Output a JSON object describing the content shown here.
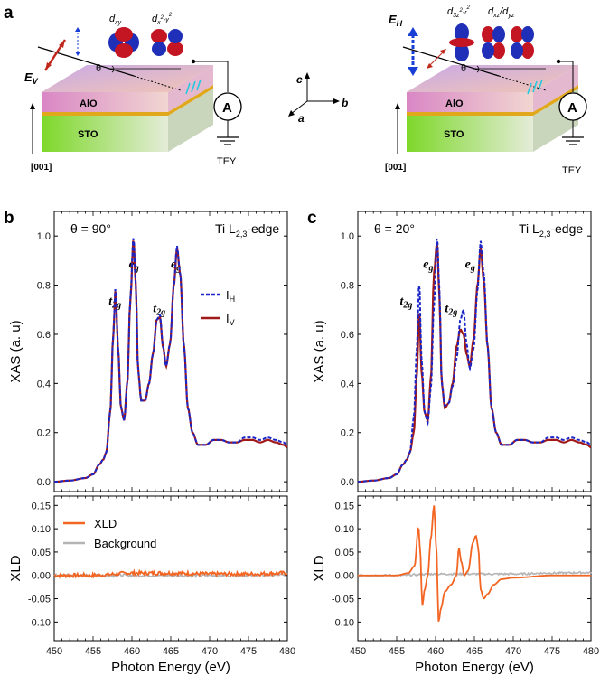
{
  "panels": {
    "a": "a",
    "b": "b",
    "c": "c"
  },
  "schematic": {
    "left": {
      "polarization": "E",
      "polarization_sub": "V",
      "angle": "θ",
      "orbital_1": "d",
      "orbital_1_sub": "xy",
      "orbital_2": "d",
      "orbital_2_sub": "x",
      "orbital_2_sup": "2",
      "orbital_2_tail": "-y",
      "orbital_2_tail_sup": "2",
      "layer_top": "AlO",
      "layer_bottom": "STO",
      "direction": "[001]",
      "meter": "A",
      "detector": "TEY"
    },
    "right": {
      "polarization": "E",
      "polarization_sub": "H",
      "angle": "θ",
      "orbital_1": "d",
      "orbital_1_sub": "3z",
      "orbital_1_sup": "2",
      "orbital_1_tail": "-r",
      "orbital_1_tail_sup": "2",
      "orbital_2": "d",
      "orbital_2_sub": "xz",
      "orbital_2_sep": "/d",
      "orbital_2_sub2": "yz",
      "layer_top": "AlO",
      "layer_bottom": "STO",
      "direction": "[001]",
      "meter": "A",
      "detector": "TEY"
    },
    "axes": {
      "c": "c",
      "b": "b",
      "a": "a"
    },
    "colors": {
      "ev": "#c0281c",
      "eh": "#1a3fd6",
      "spin": "#28c8e0",
      "orbital_red": "#c41522",
      "orbital_blue": "#1f2fb8"
    }
  },
  "colors": {
    "ih": "#1a25c8",
    "iv": "#a01818",
    "xld": "#f26522",
    "background": "#b4b4b4"
  },
  "chart_data": [
    {
      "type": "line",
      "panel": "b",
      "title": "θ = 90°",
      "edge_label": "Ti L",
      "edge_sub": "2,3",
      "edge_suffix": "-edge",
      "ylabel": "XAS (a. u)",
      "xlim": [
        450,
        480
      ],
      "ylim": [
        -0.04,
        1.1
      ],
      "yticks": [
        "0.0",
        "0.2",
        "0.4",
        "0.6",
        "0.8",
        "1.0"
      ],
      "peak_labels": [
        {
          "text": "t",
          "sub": "2g",
          "x": 457.0,
          "y": 0.72
        },
        {
          "text": "e",
          "sub": "g",
          "x": 459.6,
          "y": 0.87
        },
        {
          "text": "t",
          "sub": "2g",
          "x": 462.7,
          "y": 0.69
        },
        {
          "text": "e",
          "sub": "g",
          "x": 465.0,
          "y": 0.87
        }
      ],
      "legend": [
        {
          "label": "I",
          "sub": "H",
          "style": "dashed"
        },
        {
          "label": "I",
          "sub": "V",
          "style": "solid"
        }
      ],
      "series": [
        {
          "name": "I_H",
          "x": [
            450,
            452,
            454,
            455,
            455.8,
            456.3,
            456.7,
            457.2,
            457.6,
            457.9,
            458.2,
            458.6,
            459.0,
            459.4,
            459.8,
            460.2,
            460.5,
            460.8,
            461.2,
            461.7,
            462.2,
            462.7,
            463.2,
            463.6,
            464.0,
            464.4,
            464.9,
            465.4,
            465.8,
            466.2,
            466.7,
            467.2,
            467.8,
            468.5,
            469.5,
            470.5,
            471.5,
            472.5,
            473.5,
            474.5,
            475.5,
            476.5,
            477.5,
            478.5,
            479.5,
            480
          ],
          "y": [
            0.0,
            0.005,
            0.015,
            0.03,
            0.07,
            0.09,
            0.12,
            0.28,
            0.6,
            0.8,
            0.55,
            0.3,
            0.25,
            0.4,
            0.75,
            1.0,
            0.8,
            0.45,
            0.33,
            0.33,
            0.4,
            0.52,
            0.66,
            0.68,
            0.55,
            0.47,
            0.56,
            0.8,
            0.96,
            0.85,
            0.55,
            0.3,
            0.2,
            0.15,
            0.15,
            0.17,
            0.17,
            0.16,
            0.16,
            0.18,
            0.18,
            0.17,
            0.18,
            0.17,
            0.16,
            0.15
          ]
        },
        {
          "name": "I_V",
          "x": [
            450,
            452,
            454,
            455,
            455.8,
            456.3,
            456.7,
            457.2,
            457.6,
            457.9,
            458.2,
            458.6,
            459.0,
            459.4,
            459.8,
            460.2,
            460.5,
            460.8,
            461.2,
            461.7,
            462.2,
            462.7,
            463.2,
            463.6,
            464.0,
            464.4,
            464.9,
            465.4,
            465.8,
            466.2,
            466.7,
            467.2,
            467.8,
            468.5,
            469.5,
            470.5,
            471.5,
            472.5,
            473.5,
            474.5,
            475.5,
            476.5,
            477.5,
            478.5,
            479.5,
            480
          ],
          "y": [
            0.0,
            0.005,
            0.015,
            0.03,
            0.07,
            0.09,
            0.12,
            0.28,
            0.6,
            0.79,
            0.55,
            0.3,
            0.25,
            0.4,
            0.74,
            0.99,
            0.8,
            0.45,
            0.33,
            0.33,
            0.4,
            0.52,
            0.66,
            0.67,
            0.55,
            0.47,
            0.56,
            0.8,
            0.95,
            0.85,
            0.55,
            0.3,
            0.2,
            0.15,
            0.15,
            0.17,
            0.17,
            0.16,
            0.16,
            0.17,
            0.17,
            0.16,
            0.17,
            0.16,
            0.15,
            0.14
          ]
        }
      ]
    },
    {
      "type": "line",
      "panel": "b",
      "ylabel": "XLD",
      "xlabel": "Photon Energy (eV)",
      "xlim": [
        450,
        480
      ],
      "ylim": [
        -0.14,
        0.17
      ],
      "xticks": [
        "450",
        "455",
        "460",
        "465",
        "470",
        "475",
        "480"
      ],
      "yticks": [
        "-0.10",
        "-0.05",
        "0.00",
        "0.05",
        "0.10",
        "0.15"
      ],
      "legend": [
        {
          "label": "XLD",
          "style": "solid"
        },
        {
          "label": "Background",
          "style": "solid"
        }
      ],
      "series": [
        {
          "name": "XLD",
          "noise": 0.004,
          "x": [
            450,
            455,
            460,
            465,
            470,
            475,
            480
          ],
          "y": [
            0.0,
            0.0,
            0.005,
            0.005,
            0.003,
            0.003,
            0.005
          ]
        },
        {
          "name": "Background",
          "noise": 0.003,
          "x": [
            450,
            455,
            460,
            465,
            470,
            475,
            480
          ],
          "y": [
            0.0,
            0.0,
            0.0,
            0.0,
            0.0,
            0.0,
            0.002
          ]
        }
      ]
    },
    {
      "type": "line",
      "panel": "c",
      "title": "θ = 20°",
      "edge_label": "Ti L",
      "edge_sub": "2,3",
      "edge_suffix": "-edge",
      "ylabel": "XAS (a. u)",
      "xlim": [
        450,
        480
      ],
      "ylim": [
        -0.04,
        1.1
      ],
      "yticks": [
        "0.0",
        "0.2",
        "0.4",
        "0.6",
        "0.8",
        "1.0"
      ],
      "peak_labels": [
        {
          "text": "t",
          "sub": "2g",
          "x": 455.4,
          "y": 0.72
        },
        {
          "text": "e",
          "sub": "g",
          "x": 458.4,
          "y": 0.87
        },
        {
          "text": "t",
          "sub": "2g",
          "x": 461.2,
          "y": 0.69
        },
        {
          "text": "e",
          "sub": "g",
          "x": 463.8,
          "y": 0.87
        }
      ],
      "series": [
        {
          "name": "I_H",
          "x": [
            450,
            452,
            454,
            455,
            455.8,
            456.3,
            456.7,
            457.2,
            457.6,
            457.9,
            458.2,
            458.6,
            459.0,
            459.4,
            459.8,
            460.2,
            460.5,
            460.8,
            461.2,
            461.7,
            462.2,
            462.7,
            463.2,
            463.6,
            464.0,
            464.4,
            464.9,
            465.4,
            465.8,
            466.2,
            466.7,
            467.2,
            467.8,
            468.5,
            469.5,
            470.5,
            471.5,
            472.5,
            473.5,
            474.5,
            475.5,
            476.5,
            477.5,
            478.5,
            479.5,
            480
          ],
          "y": [
            0.0,
            0.005,
            0.015,
            0.03,
            0.07,
            0.09,
            0.12,
            0.26,
            0.55,
            0.82,
            0.5,
            0.28,
            0.24,
            0.38,
            0.72,
            1.0,
            0.78,
            0.4,
            0.31,
            0.32,
            0.39,
            0.5,
            0.66,
            0.7,
            0.56,
            0.46,
            0.54,
            0.78,
            0.98,
            0.85,
            0.55,
            0.3,
            0.2,
            0.15,
            0.15,
            0.17,
            0.17,
            0.16,
            0.16,
            0.18,
            0.18,
            0.17,
            0.18,
            0.17,
            0.16,
            0.15
          ]
        },
        {
          "name": "I_V",
          "x": [
            450,
            452,
            454,
            455,
            455.8,
            456.3,
            456.7,
            457.2,
            457.6,
            457.9,
            458.2,
            458.6,
            459.0,
            459.4,
            459.8,
            460.2,
            460.5,
            460.8,
            461.2,
            461.7,
            462.2,
            462.7,
            463.2,
            463.6,
            464.0,
            464.4,
            464.9,
            465.4,
            465.8,
            466.2,
            466.7,
            467.2,
            467.8,
            468.5,
            469.5,
            470.5,
            471.5,
            472.5,
            473.5,
            474.5,
            475.5,
            476.5,
            477.5,
            478.5,
            479.5,
            480
          ],
          "y": [
            0.0,
            0.005,
            0.015,
            0.03,
            0.07,
            0.09,
            0.12,
            0.2,
            0.44,
            0.7,
            0.45,
            0.28,
            0.25,
            0.42,
            0.85,
            0.98,
            0.75,
            0.4,
            0.3,
            0.32,
            0.4,
            0.55,
            0.62,
            0.6,
            0.52,
            0.47,
            0.58,
            0.8,
            0.95,
            0.82,
            0.55,
            0.3,
            0.2,
            0.15,
            0.15,
            0.17,
            0.17,
            0.16,
            0.16,
            0.17,
            0.17,
            0.16,
            0.17,
            0.16,
            0.15,
            0.14
          ]
        }
      ]
    },
    {
      "type": "line",
      "panel": "c",
      "ylabel": "XLD",
      "xlabel": "Photon Energy (eV)",
      "xlim": [
        450,
        480
      ],
      "ylim": [
        -0.14,
        0.17
      ],
      "xticks": [
        "450",
        "455",
        "460",
        "465",
        "470",
        "475",
        "480"
      ],
      "yticks": [
        "-0.10",
        "-0.05",
        "0.00",
        "0.05",
        "0.10",
        "0.15"
      ],
      "series": [
        {
          "name": "XLD",
          "noise": 0.0,
          "x": [
            450,
            455,
            456.5,
            457.3,
            457.8,
            458.0,
            458.3,
            458.6,
            459.0,
            459.4,
            459.8,
            460.1,
            460.4,
            460.7,
            461.2,
            462.0,
            462.7,
            463.0,
            463.3,
            463.7,
            464.2,
            464.8,
            465.2,
            465.5,
            465.8,
            466.2,
            466.7,
            467.5,
            468.5,
            470,
            475,
            480
          ],
          "y": [
            0.0,
            0.0,
            0.005,
            0.02,
            0.105,
            0.06,
            -0.065,
            -0.03,
            0.0,
            0.08,
            0.15,
            0.06,
            -0.1,
            -0.07,
            -0.035,
            -0.02,
            0.0,
            0.06,
            0.03,
            0.0,
            0.01,
            0.07,
            0.085,
            0.06,
            -0.03,
            -0.05,
            -0.04,
            -0.02,
            -0.008,
            -0.005,
            0.0,
            0.0
          ]
        },
        {
          "name": "Background",
          "noise": 0.002,
          "x": [
            450,
            455,
            460,
            465,
            470,
            475,
            480
          ],
          "y": [
            0.0,
            0.0,
            0.003,
            0.003,
            0.003,
            0.005,
            0.006
          ]
        }
      ]
    }
  ]
}
